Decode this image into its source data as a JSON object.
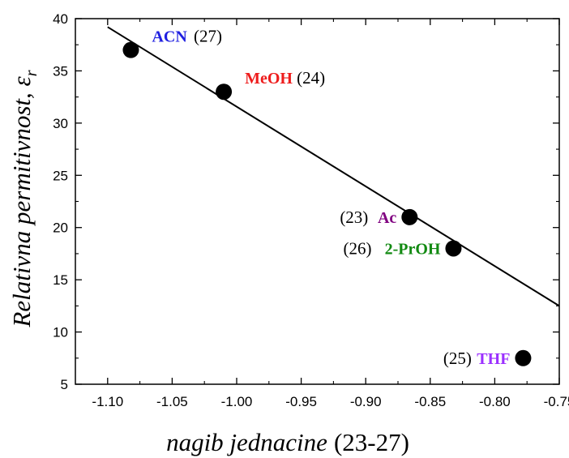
{
  "chart_data": {
    "type": "scatter",
    "title": "",
    "xlabel": {
      "italic": "nagib jednacine",
      "upright": "(23-27)"
    },
    "ylabel": {
      "italic": "Relativna permitivnost, ε",
      "subscript": "r"
    },
    "xlim": [
      -1.125,
      -0.75
    ],
    "ylim": [
      5,
      40
    ],
    "xticks": [
      -1.1,
      -1.05,
      -1.0,
      -0.95,
      -0.9,
      -0.85,
      -0.8,
      -0.75
    ],
    "xtick_labels": [
      "-1.10",
      "-1.05",
      "-1.00",
      "-0.95",
      "-0.90",
      "-0.85",
      "-0.80",
      "-0.75"
    ],
    "yticks": [
      5,
      10,
      15,
      20,
      25,
      30,
      35,
      40
    ],
    "ytick_labels": [
      "5",
      "10",
      "15",
      "20",
      "25",
      "30",
      "35",
      "40"
    ],
    "grid": false,
    "points": [
      {
        "name": "ACN",
        "number": "(27)",
        "x": -1.082,
        "y": 37.0,
        "color": "#1f1fe0",
        "label_side": "right"
      },
      {
        "name": "MeOH",
        "number": "(24)",
        "x": -1.01,
        "y": 33.0,
        "color": "#ee1c1c",
        "label_side": "right"
      },
      {
        "name": "Ac",
        "number": "(23)",
        "x": -0.866,
        "y": 21.0,
        "color": "#800080",
        "label_side": "left"
      },
      {
        "name": "2-PrOH",
        "number": "(26)",
        "x": -0.832,
        "y": 18.0,
        "color": "#128a12",
        "label_side": "left"
      },
      {
        "name": "THF",
        "number": "(25)",
        "x": -0.778,
        "y": 7.5,
        "color": "#9b30ff",
        "label_side": "left"
      }
    ],
    "fit_line": {
      "x": [
        -1.1,
        -0.75
      ],
      "y": [
        39.2,
        12.5
      ]
    },
    "colors": {
      "marker": "#000000",
      "line": "#000000"
    }
  }
}
